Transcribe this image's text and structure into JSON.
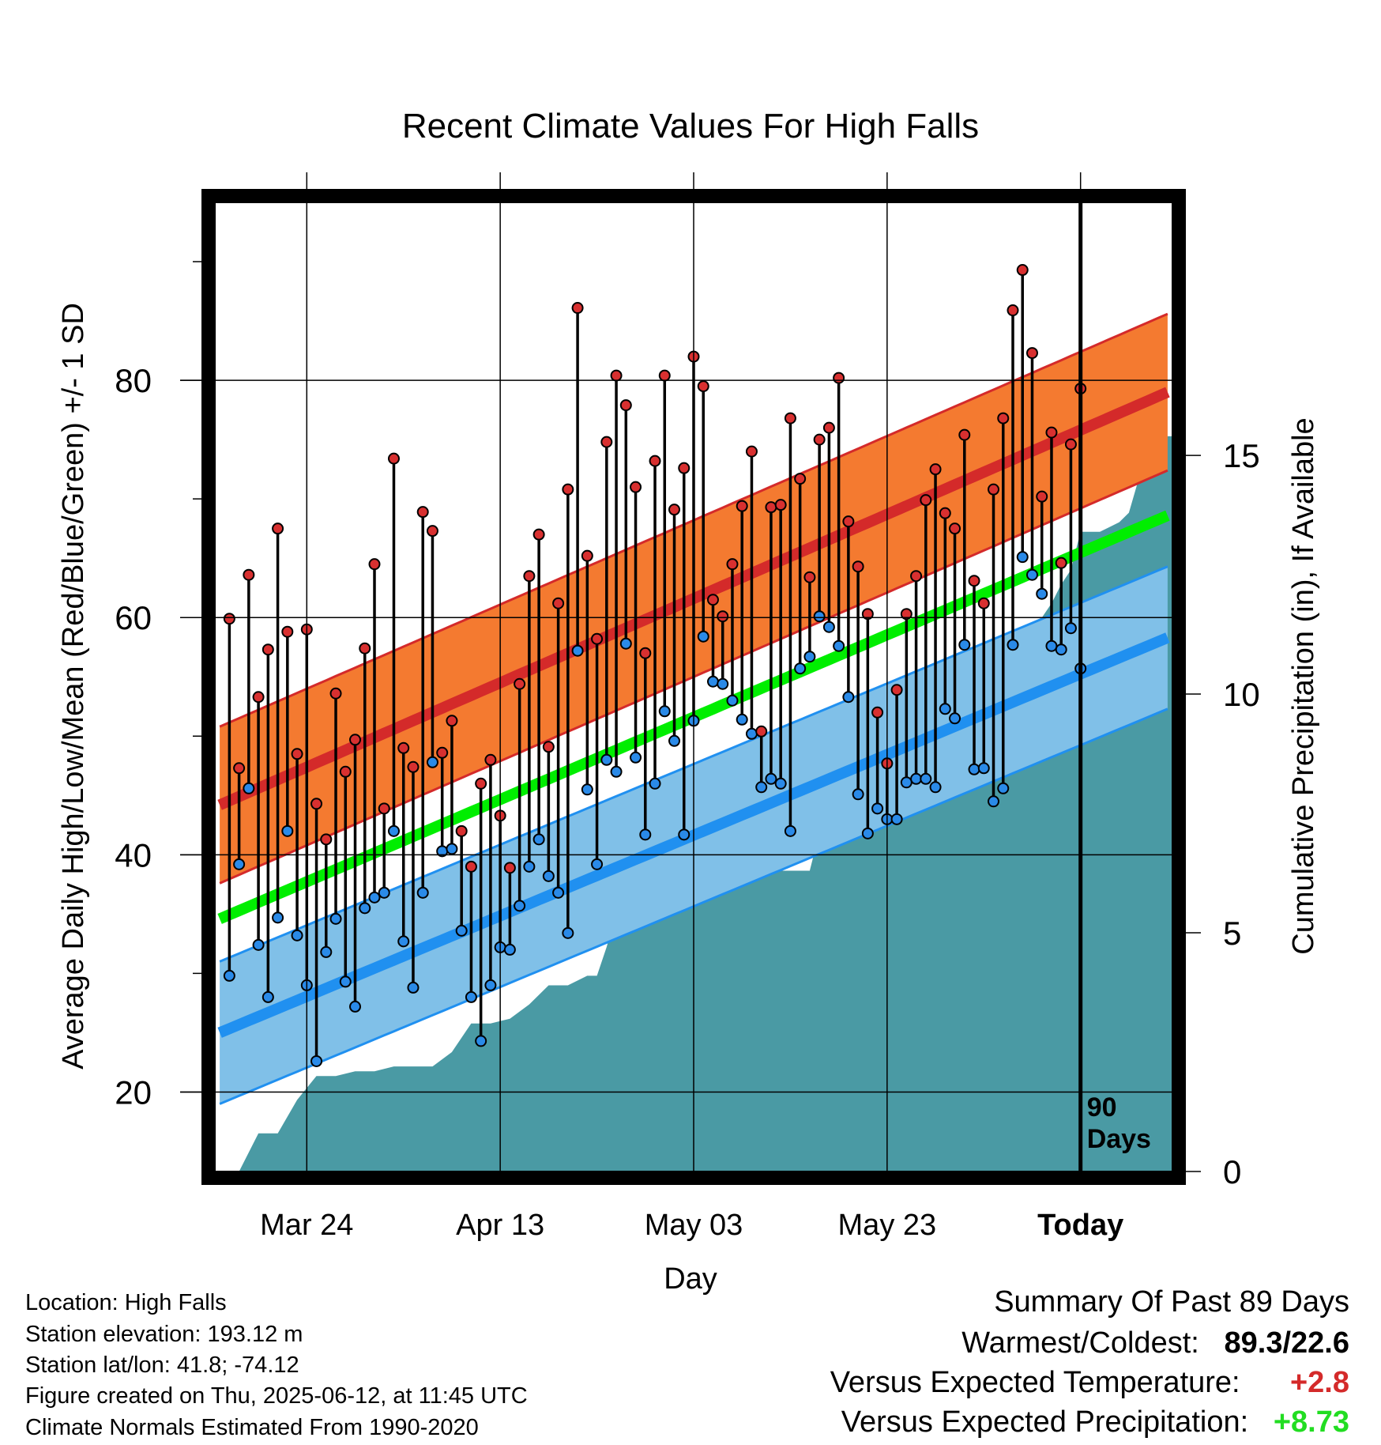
{
  "chart_data": {
    "type": "line",
    "title": "Recent Climate Values For High Falls",
    "xlabel": "Day",
    "ylabel": "Average Daily High/Low/Mean (Red/Blue/Green) +/- 1 SD",
    "y2label": "Cumulative Precipitation (in), If Available",
    "x_ticks": [
      "Mar 24",
      "Apr 13",
      "May 03",
      "May 23",
      "Today"
    ],
    "today_label": [
      "90",
      "Days"
    ],
    "ylim": [
      13.3,
      95.0
    ],
    "y_ticks": [
      20,
      40,
      60,
      80
    ],
    "y2lim": [
      0,
      20.3
    ],
    "y2_ticks": [
      0,
      5,
      10,
      15
    ],
    "xlim_days": [
      -89.5,
      9.5
    ],
    "normal_band_days": [
      -89,
      9
    ],
    "normal_high": {
      "mean": [
        44.2,
        79.0
      ],
      "sd": 6.6
    },
    "normal_low": {
      "mean": [
        25.0,
        58.3
      ],
      "sd": 6.0
    },
    "normal_mean": [
      34.6,
      68.6
    ],
    "daily_high": [
      59.9,
      47.3,
      63.6,
      53.3,
      57.3,
      67.5,
      58.8,
      48.5,
      59.0,
      44.3,
      41.3,
      53.6,
      47.0,
      49.7,
      57.4,
      64.5,
      43.9,
      73.4,
      49.0,
      47.4,
      68.9,
      67.3,
      48.6,
      51.3,
      42.0,
      39.0,
      46.0,
      48.0,
      43.3,
      38.9,
      54.4,
      63.5,
      67.0,
      49.1,
      61.2,
      70.8,
      86.1,
      65.2,
      58.2,
      74.8,
      80.4,
      77.9,
      71.0,
      57.0,
      73.2,
      80.4,
      69.1,
      72.6,
      82.0,
      79.5,
      61.5,
      60.1,
      64.5,
      69.4,
      74.0,
      50.4,
      69.3,
      69.5,
      76.8,
      71.7,
      63.4,
      75.0,
      76.0,
      80.2,
      68.1,
      64.3,
      60.3,
      52.0,
      47.7,
      53.9,
      60.3,
      63.5,
      69.9,
      72.5,
      68.8,
      67.5,
      75.4,
      63.1,
      61.2,
      70.8,
      76.8,
      85.9,
      89.3,
      82.3,
      70.2,
      75.6,
      64.6,
      74.6,
      79.3
    ],
    "daily_low": [
      29.8,
      39.2,
      45.6,
      32.4,
      28.0,
      34.7,
      42.0,
      33.2,
      29.0,
      22.6,
      31.8,
      34.6,
      29.3,
      27.2,
      35.5,
      36.4,
      36.8,
      42.0,
      32.7,
      28.8,
      36.8,
      47.8,
      40.3,
      40.5,
      33.6,
      28.0,
      24.3,
      29.0,
      32.2,
      32.0,
      35.7,
      39.0,
      41.3,
      38.2,
      36.8,
      33.4,
      57.2,
      45.5,
      39.2,
      48.0,
      47.0,
      57.8,
      48.2,
      41.7,
      46.0,
      52.1,
      49.6,
      41.7,
      51.3,
      58.4,
      54.6,
      54.4,
      53.0,
      51.4,
      50.2,
      45.7,
      46.4,
      46.0,
      42.0,
      55.7,
      56.7,
      60.1,
      59.2,
      57.6,
      53.3,
      45.1,
      41.8,
      43.9,
      43.0,
      43.0,
      46.1,
      46.4,
      46.4,
      45.7,
      52.3,
      51.5,
      57.7,
      47.2,
      47.3,
      44.5,
      45.6,
      57.7,
      65.1,
      63.6,
      62.0,
      57.6,
      57.3,
      59.1,
      55.7
    ],
    "cumulative_precip": [
      [
        -89,
        0
      ],
      [
        -87,
        0
      ],
      [
        -85,
        0.8
      ],
      [
        -83,
        0.8
      ],
      [
        -81,
        1.5
      ],
      [
        -79,
        2.0
      ],
      [
        -77,
        2.0
      ],
      [
        -75,
        2.1
      ],
      [
        -73,
        2.1
      ],
      [
        -71,
        2.2
      ],
      [
        -69,
        2.2
      ],
      [
        -67,
        2.2
      ],
      [
        -65,
        2.5
      ],
      [
        -63,
        3.1
      ],
      [
        -61,
        3.1
      ],
      [
        -59,
        3.2
      ],
      [
        -57,
        3.5
      ],
      [
        -55,
        3.9
      ],
      [
        -53,
        3.9
      ],
      [
        -51,
        4.1
      ],
      [
        -50,
        4.1
      ],
      [
        -49,
        4.7
      ],
      [
        -47,
        6.1
      ],
      [
        -45,
        6.1
      ],
      [
        -43,
        6.1
      ],
      [
        -41,
        6.2
      ],
      [
        -39,
        6.2
      ],
      [
        -37,
        6.2
      ],
      [
        -35,
        6.2
      ],
      [
        -33,
        6.3
      ],
      [
        -31,
        6.3
      ],
      [
        -29,
        6.3
      ],
      [
        -28,
        6.3
      ],
      [
        -27,
        7.1
      ],
      [
        -25,
        7.2
      ],
      [
        -23,
        7.2
      ],
      [
        -21,
        7.3
      ],
      [
        -20,
        7.3
      ],
      [
        -19,
        7.4
      ],
      [
        -17,
        7.6
      ],
      [
        -16,
        8.9
      ],
      [
        -15,
        8.9
      ],
      [
        -14,
        8.9
      ],
      [
        -13,
        8.9
      ],
      [
        -12,
        8.9
      ],
      [
        -11,
        8.9
      ],
      [
        -10,
        8.9
      ],
      [
        -9,
        8.9
      ],
      [
        -8,
        9.3
      ],
      [
        -7,
        10.8
      ],
      [
        -6,
        11.0
      ],
      [
        -5,
        11.3
      ],
      [
        -4,
        11.6
      ],
      [
        -3,
        11.9
      ],
      [
        -2,
        12.3
      ],
      [
        -1,
        12.6
      ],
      [
        0,
        13.4
      ],
      [
        0.5,
        13.4
      ],
      [
        1,
        13.4
      ],
      [
        2,
        13.4
      ],
      [
        3,
        13.5
      ],
      [
        4,
        13.6
      ],
      [
        5,
        13.8
      ],
      [
        6,
        14.5
      ],
      [
        7,
        14.8
      ],
      [
        8,
        15.1
      ],
      [
        9,
        15.4
      ],
      [
        9.5,
        15.4
      ]
    ]
  },
  "info": {
    "location": "Location: High Falls",
    "elevation": "Station elevation: 193.12 m",
    "latlon": "Station lat/lon: 41.8; -74.12",
    "created": "Figure created on Thu, 2025-06-12, at 11:45 UTC",
    "normals": "Climate Normals Estimated From 1990-2020"
  },
  "summary": {
    "heading": "Summary Of Past 89 Days",
    "warmest_label": "Warmest/Coldest:",
    "warmest_value": "89.3/22.6",
    "temp_label": "Versus Expected Temperature:",
    "temp_value": "+2.8",
    "precip_label": "Versus Expected Precipitation:",
    "precip_value": "+8.73"
  },
  "colors": {
    "high_band": "#f47a30",
    "high_line": "#d42a2a",
    "low_band": "#80c0e8",
    "low_line": "#2090f0",
    "mean_line": "#00ee00",
    "precip": "#4a9aa4",
    "high_dot": "#d83030",
    "low_dot": "#2a8ae8",
    "temp_value": "#d42a2a",
    "precip_value": "#22dd22"
  }
}
